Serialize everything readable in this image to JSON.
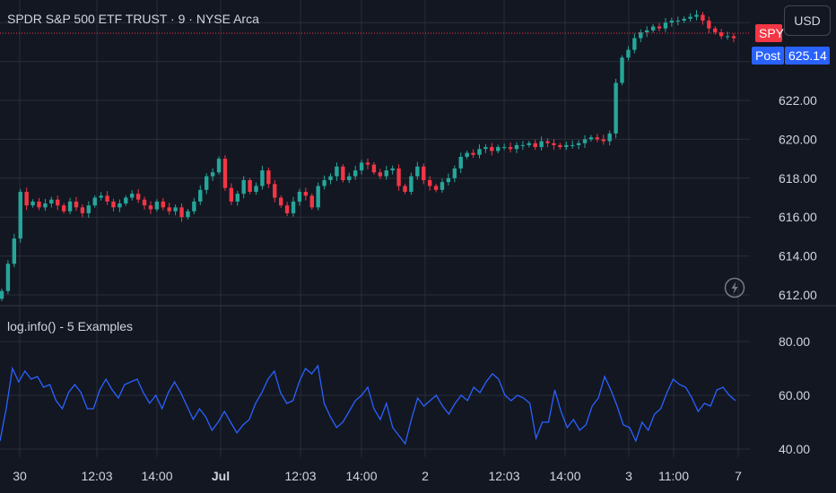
{
  "header": {
    "title": "SPDR S&P 500 ETF TRUST · 9 · NYSE Arca"
  },
  "currency_button": {
    "label": "USD"
  },
  "symbol_tag": {
    "label": "SPY"
  },
  "post_tag": {
    "label": "Post",
    "price": "625.14"
  },
  "indicator": {
    "title": "log.info() - 5 Examples"
  },
  "colors": {
    "background": "#131722",
    "up": "#26a69a",
    "down": "#f23645",
    "line": "#2962ff",
    "grid": "#2a2e39",
    "text": "#d1d4dc"
  },
  "chart_data": [
    {
      "type": "candlestick",
      "ylim": [
        611.5,
        627.5
      ],
      "y_ticks": [
        "612.00",
        "614.00",
        "616.00",
        "618.00",
        "620.00",
        "622.00"
      ],
      "x_ticks": [
        "30",
        "12:03",
        "14:00",
        "Jul",
        "12:03",
        "14:00",
        "2",
        "12:03",
        "14:00",
        "3",
        "11:00",
        "7"
      ],
      "close_values": [
        612.2,
        613.6,
        614.9,
        617.3,
        616.6,
        616.8,
        616.5,
        616.7,
        616.9,
        616.6,
        616.3,
        616.8,
        616.5,
        616.2,
        616.6,
        617.0,
        617.1,
        616.8,
        616.5,
        616.7,
        617.0,
        617.2,
        616.9,
        616.6,
        616.4,
        616.8,
        616.5,
        616.3,
        616.5,
        616.0,
        616.3,
        616.8,
        617.4,
        618.1,
        618.3,
        619.0,
        617.5,
        616.8,
        617.2,
        617.9,
        617.3,
        617.6,
        618.4,
        617.7,
        617.0,
        616.6,
        616.2,
        616.8,
        617.3,
        617.1,
        616.5,
        617.6,
        617.9,
        618.1,
        618.6,
        617.9,
        618.1,
        618.4,
        618.8,
        618.7,
        618.3,
        618.1,
        618.4,
        618.5,
        617.6,
        617.3,
        618.1,
        618.6,
        617.9,
        617.6,
        617.4,
        617.8,
        618.0,
        618.5,
        619.1,
        619.3,
        619.2,
        619.5,
        619.6,
        619.4,
        619.6,
        619.6,
        619.5,
        619.7,
        619.7,
        619.8,
        619.6,
        619.9,
        619.8,
        619.7,
        619.6,
        619.7,
        619.7,
        619.8,
        620.0,
        620.1,
        620.0,
        619.9,
        620.3,
        622.9,
        624.2,
        624.6,
        625.2,
        625.5,
        625.6,
        625.8,
        625.7,
        626.0,
        626.1,
        626.1,
        626.2,
        626.3,
        626.4,
        626.1,
        625.7,
        625.5,
        625.3,
        625.3,
        625.2
      ]
    },
    {
      "type": "line",
      "title": "log.info() - 5 Examples",
      "ylim": [
        39,
        93
      ],
      "y_ticks": [
        "40.00",
        "60.00",
        "80.00"
      ],
      "x": [
        0,
        1,
        2,
        3,
        4,
        5,
        6,
        7,
        8,
        9,
        10,
        11,
        12,
        13,
        14,
        15,
        16,
        17,
        18,
        19,
        20,
        21,
        22,
        23,
        24,
        25,
        26,
        27,
        28,
        29,
        30,
        31,
        32,
        33,
        34,
        35,
        36,
        37,
        38,
        39,
        40,
        41,
        42,
        43,
        44,
        45,
        46,
        47,
        48,
        49,
        50,
        51,
        52,
        53,
        54,
        55,
        56,
        57,
        58,
        59,
        60,
        61,
        62,
        63,
        64,
        65,
        66,
        67,
        68,
        69,
        70,
        71,
        72,
        73,
        74,
        75,
        76,
        77,
        78,
        79,
        80,
        81,
        82,
        83,
        84,
        85,
        86,
        87,
        88,
        89,
        90,
        91,
        92,
        93,
        94,
        95,
        96,
        97,
        98,
        99,
        100,
        101,
        102,
        103,
        104,
        105,
        106,
        107,
        108,
        109,
        110,
        111,
        112,
        113,
        114,
        115,
        116,
        117,
        118
      ],
      "values": [
        43,
        55,
        70,
        65,
        69,
        66,
        67,
        63,
        64,
        58,
        55,
        61,
        64,
        61,
        55,
        55,
        62,
        66,
        62,
        59,
        64,
        65,
        66,
        61,
        57,
        60,
        55,
        61,
        65,
        61,
        56,
        51,
        55,
        52,
        47,
        50,
        54,
        50,
        46,
        49,
        51,
        57,
        61,
        66,
        69,
        61,
        57,
        58,
        65,
        70,
        68,
        71,
        57,
        52,
        48,
        50,
        54,
        58,
        60,
        63,
        55,
        51,
        57,
        48,
        45,
        42,
        51,
        59,
        56,
        58,
        60,
        56,
        53,
        57,
        60,
        58,
        63,
        61,
        65,
        68,
        66,
        60,
        58,
        60,
        59,
        57,
        44,
        50,
        50,
        62,
        54,
        48,
        51,
        47,
        49,
        56,
        59,
        67,
        62,
        56,
        49,
        48,
        43,
        50,
        47,
        53,
        55,
        61,
        66,
        64,
        63,
        59,
        54,
        57,
        56,
        62,
        63,
        60,
        58
      ]
    }
  ]
}
